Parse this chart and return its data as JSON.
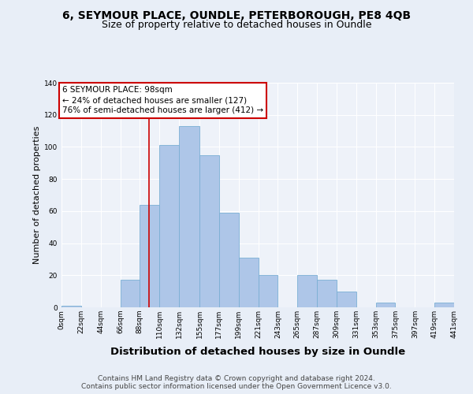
{
  "title1": "6, SEYMOUR PLACE, OUNDLE, PETERBOROUGH, PE8 4QB",
  "title2": "Size of property relative to detached houses in Oundle",
  "xlabel": "Distribution of detached houses by size in Oundle",
  "ylabel": "Number of detached properties",
  "bar_edges": [
    0,
    22,
    44,
    66,
    88,
    110,
    132,
    155,
    177,
    199,
    221,
    243,
    265,
    287,
    309,
    331,
    353,
    375,
    397,
    419,
    441
  ],
  "bar_heights": [
    1,
    0,
    0,
    17,
    64,
    101,
    113,
    95,
    59,
    31,
    20,
    0,
    20,
    17,
    10,
    0,
    3,
    0,
    0,
    3
  ],
  "bar_color": "#aec6e8",
  "bar_edgecolor": "#7aafd4",
  "vline_x": 98,
  "vline_color": "#cc0000",
  "annotation_text": "6 SEYMOUR PLACE: 98sqm\n← 24% of detached houses are smaller (127)\n76% of semi-detached houses are larger (412) →",
  "annotation_box_edgecolor": "#cc0000",
  "annotation_box_facecolor": "#ffffff",
  "ylim": [
    0,
    140
  ],
  "yticks": [
    0,
    20,
    40,
    60,
    80,
    100,
    120,
    140
  ],
  "tick_labels": [
    "0sqm",
    "22sqm",
    "44sqm",
    "66sqm",
    "88sqm",
    "110sqm",
    "132sqm",
    "155sqm",
    "177sqm",
    "199sqm",
    "221sqm",
    "243sqm",
    "265sqm",
    "287sqm",
    "309sqm",
    "331sqm",
    "353sqm",
    "375sqm",
    "397sqm",
    "419sqm",
    "441sqm"
  ],
  "footer1": "Contains HM Land Registry data © Crown copyright and database right 2024.",
  "footer2": "Contains public sector information licensed under the Open Government Licence v3.0.",
  "background_color": "#e8eef7",
  "plot_background": "#eef2f9",
  "grid_color": "#ffffff",
  "title1_fontsize": 10,
  "title2_fontsize": 9,
  "xlabel_fontsize": 9.5,
  "ylabel_fontsize": 8,
  "tick_fontsize": 6.5,
  "footer_fontsize": 6.5,
  "ann_fontsize": 7.5
}
